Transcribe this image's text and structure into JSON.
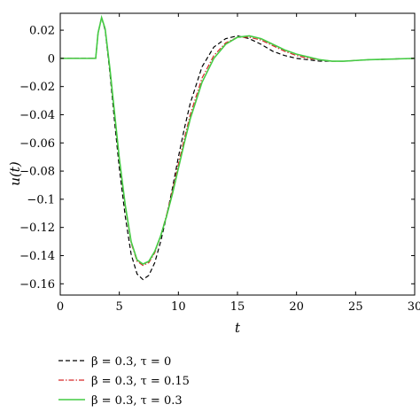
{
  "chart_data": {
    "type": "line",
    "xlabel": "t",
    "ylabel": "u(t)",
    "xlim": [
      0,
      30
    ],
    "ylim": [
      -0.168,
      0.032
    ],
    "xticks": [
      0,
      5,
      10,
      15,
      20,
      25,
      30
    ],
    "xtick_labels": [
      "0",
      "5",
      "10",
      "15",
      "20",
      "25",
      "30"
    ],
    "yticks": [
      0.02,
      0,
      -0.02,
      -0.04,
      -0.06,
      -0.08,
      -0.1,
      -0.12,
      -0.14,
      -0.16
    ],
    "ytick_labels": [
      "0.02",
      "0",
      "−0.02",
      "−0.04",
      "−0.06",
      "−0.08",
      "−0.1",
      "−0.12",
      "−0.14",
      "−0.16"
    ],
    "grid": false,
    "legend_placement": "below",
    "series": [
      {
        "name": "β = 0.3, τ = 0",
        "color": "#000000",
        "style": "dashed",
        "x": [
          0,
          3,
          3.2,
          3.5,
          3.8,
          4.2,
          4.6,
          5,
          5.5,
          6,
          6.5,
          7,
          7.5,
          8,
          8.5,
          9,
          9.5,
          10,
          10.5,
          11,
          12,
          13,
          14,
          15,
          16,
          17,
          18,
          19,
          20,
          21,
          22,
          23,
          24,
          25,
          26,
          28,
          30
        ],
        "y": [
          0,
          0,
          0.018,
          0.029,
          0.02,
          -0.01,
          -0.045,
          -0.078,
          -0.112,
          -0.139,
          -0.153,
          -0.157,
          -0.154,
          -0.145,
          -0.13,
          -0.112,
          -0.092,
          -0.07,
          -0.05,
          -0.032,
          -0.006,
          0.008,
          0.014,
          0.016,
          0.014,
          0.01,
          0.005,
          0.002,
          0,
          -0.001,
          -0.002,
          -0.002,
          -0.002,
          -0.0015,
          -0.001,
          -0.0005,
          0
        ]
      },
      {
        "name": "β = 0.3, τ = 0.15",
        "color": "#d62728",
        "style": "dashdot",
        "x": [
          0,
          3,
          3.2,
          3.5,
          3.8,
          4.2,
          4.6,
          5,
          5.5,
          6,
          6.5,
          7,
          7.5,
          8,
          8.5,
          9,
          9.5,
          10,
          10.5,
          11,
          12,
          13,
          14,
          15,
          16,
          17,
          18,
          19,
          20,
          21,
          22,
          23,
          24,
          25,
          26,
          28,
          30
        ],
        "y": [
          0,
          0,
          0.018,
          0.029,
          0.021,
          -0.008,
          -0.04,
          -0.072,
          -0.105,
          -0.131,
          -0.144,
          -0.147,
          -0.145,
          -0.138,
          -0.126,
          -0.111,
          -0.094,
          -0.075,
          -0.057,
          -0.04,
          -0.014,
          0.002,
          0.011,
          0.015,
          0.015,
          0.013,
          0.009,
          0.005,
          0.002,
          0,
          -0.001,
          -0.002,
          -0.002,
          -0.0015,
          -0.001,
          -0.0005,
          0
        ]
      },
      {
        "name": "β = 0.3, τ = 0.3",
        "color": "#44cc44",
        "style": "solid",
        "x": [
          0,
          3,
          3.2,
          3.5,
          3.8,
          4.2,
          4.6,
          5,
          5.5,
          6,
          6.5,
          7,
          7.5,
          8,
          8.5,
          9,
          9.5,
          10,
          10.5,
          11,
          12,
          13,
          14,
          15,
          16,
          17,
          18,
          19,
          20,
          21,
          22,
          23,
          24,
          25,
          26,
          28,
          30
        ],
        "y": [
          0,
          0,
          0.018,
          0.029,
          0.021,
          -0.007,
          -0.039,
          -0.071,
          -0.104,
          -0.13,
          -0.143,
          -0.146,
          -0.144,
          -0.137,
          -0.126,
          -0.112,
          -0.096,
          -0.078,
          -0.06,
          -0.043,
          -0.017,
          0,
          0.01,
          0.015,
          0.016,
          0.014,
          0.01,
          0.006,
          0.003,
          0.001,
          -0.001,
          -0.002,
          -0.002,
          -0.0015,
          -0.001,
          -0.0005,
          0
        ]
      }
    ]
  }
}
